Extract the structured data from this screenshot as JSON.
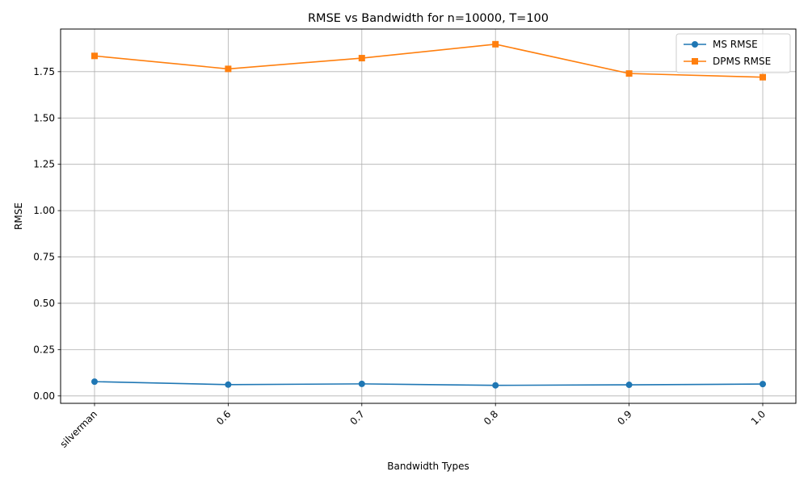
{
  "chart_data": {
    "type": "line",
    "title": "RMSE vs Bandwidth for n=10000, T=100",
    "xlabel": "Bandwidth Types",
    "ylabel": "RMSE",
    "categories": [
      "silverman",
      "0.6",
      "0.7",
      "0.8",
      "0.9",
      "1.0"
    ],
    "ylim": [
      -0.04,
      1.98
    ],
    "yticks": [
      0.0,
      0.25,
      0.5,
      0.75,
      1.0,
      1.25,
      1.5,
      1.75
    ],
    "ytick_labels": [
      "0.00",
      "0.25",
      "0.50",
      "0.75",
      "1.00",
      "1.25",
      "1.50",
      "1.75"
    ],
    "grid": true,
    "legend_position": "top-right",
    "x_tick_rotation_deg": 45,
    "series": [
      {
        "name": "MS RMSE",
        "values": [
          0.077,
          0.061,
          0.065,
          0.057,
          0.06,
          0.064
        ],
        "color": "#1f77b4",
        "marker": "circle"
      },
      {
        "name": "DPMS RMSE",
        "values": [
          1.835,
          1.765,
          1.823,
          1.898,
          1.74,
          1.72
        ],
        "color": "#ff7f0e",
        "marker": "square"
      }
    ]
  }
}
